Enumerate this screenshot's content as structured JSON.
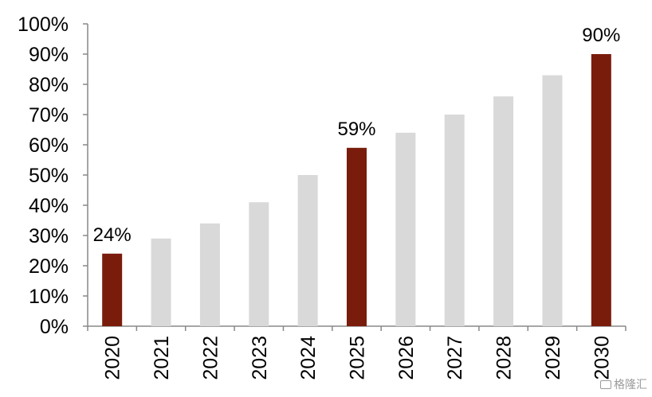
{
  "chart_data": {
    "type": "bar",
    "title": "",
    "xlabel": "",
    "ylabel": "",
    "categories": [
      "2020",
      "2021",
      "2022",
      "2023",
      "2024",
      "2025",
      "2026",
      "2027",
      "2028",
      "2029",
      "2030"
    ],
    "values": [
      24,
      29,
      34,
      41,
      50,
      59,
      64,
      70,
      76,
      83,
      90
    ],
    "highlighted": [
      true,
      false,
      false,
      false,
      false,
      true,
      false,
      false,
      false,
      false,
      true
    ],
    "data_labels": [
      "24%",
      "",
      "",
      "",
      "",
      "59%",
      "",
      "",
      "",
      "",
      "90%"
    ],
    "ylim": [
      0,
      100
    ],
    "yticks": [
      0,
      10,
      20,
      30,
      40,
      50,
      60,
      70,
      80,
      90,
      100
    ],
    "ytick_labels": [
      "0%",
      "10%",
      "20%",
      "30%",
      "40%",
      "50%",
      "60%",
      "70%",
      "80%",
      "90%",
      "100%"
    ],
    "grid": false,
    "legend": "none",
    "colors": {
      "highlight": "#7a1c0c",
      "default": "#d9d9d9",
      "axis": "#898989"
    }
  },
  "watermark": {
    "text": "格隆汇",
    "icon": "watermark-logo-icon"
  }
}
